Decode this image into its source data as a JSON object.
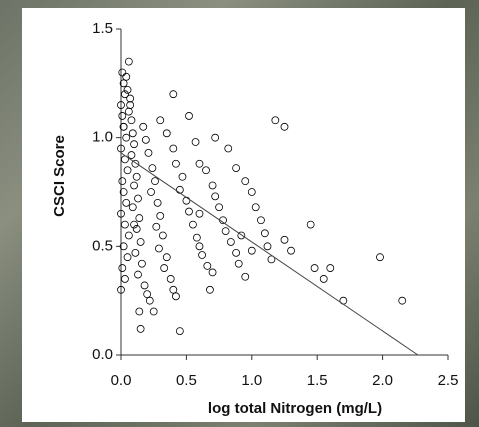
{
  "chart_data": {
    "type": "scatter",
    "x_label": "log total Nitrogen (mg/L)",
    "y_label": "CSCI Score",
    "xlim": [
      0,
      2.5
    ],
    "ylim": [
      0,
      1.5
    ],
    "xticks": [
      {
        "value": 0,
        "label": "0.0"
      },
      {
        "value": 0.5,
        "label": "0.5"
      },
      {
        "value": 1,
        "label": "1.0"
      },
      {
        "value": 1.5,
        "label": "1.5"
      },
      {
        "value": 2,
        "label": "2.0"
      },
      {
        "value": 2.5,
        "label": "2.5"
      }
    ],
    "yticks": [
      {
        "value": 0,
        "label": "0.0"
      },
      {
        "value": 0.5,
        "label": "0.5"
      },
      {
        "value": 1,
        "label": "1.0"
      },
      {
        "value": 1.5,
        "label": "1.5"
      }
    ],
    "color": "#000000",
    "points": {
      "x": [
        0.01,
        0.02,
        0.03,
        0.0,
        0.01,
        0.02,
        0.04,
        0.0,
        0.03,
        0.05,
        0.01,
        0.02,
        0.04,
        0.0,
        0.03,
        0.06,
        0.02,
        0.05,
        0.01,
        0.03,
        0.0,
        0.06,
        0.07,
        0.08,
        0.05,
        0.04,
        0.06,
        0.09,
        0.1,
        0.08,
        0.11,
        0.12,
        0.1,
        0.13,
        0.09,
        0.14,
        0.12,
        0.15,
        0.11,
        0.16,
        0.13,
        0.18,
        0.2,
        0.22,
        0.17,
        0.19,
        0.21,
        0.24,
        0.26,
        0.23,
        0.28,
        0.3,
        0.27,
        0.32,
        0.29,
        0.35,
        0.33,
        0.38,
        0.4,
        0.45,
        0.42,
        0.3,
        0.35,
        0.4,
        0.42,
        0.47,
        0.45,
        0.5,
        0.52,
        0.55,
        0.58,
        0.6,
        0.62,
        0.66,
        0.7,
        0.52,
        0.57,
        0.6,
        0.65,
        0.7,
        0.72,
        0.75,
        0.78,
        0.8,
        0.84,
        0.88,
        0.9,
        0.95,
        0.72,
        0.82,
        0.88,
        0.95,
        1.0,
        1.03,
        1.07,
        1.1,
        1.12,
        1.15,
        1.18,
        1.25,
        1.25,
        1.3,
        1.45,
        1.48,
        1.55,
        1.6,
        1.7,
        1.98,
        2.15,
        1.0,
        0.15,
        0.6,
        0.1,
        0.07,
        0.02,
        0.14,
        0.25,
        0.68,
        0.92,
        0.4
      ],
      "y": [
        1.3,
        1.25,
        1.2,
        1.15,
        1.1,
        1.05,
        1.0,
        0.95,
        0.9,
        0.85,
        0.8,
        0.75,
        0.7,
        0.65,
        0.6,
        0.55,
        0.5,
        0.45,
        0.4,
        0.35,
        0.3,
        1.12,
        1.18,
        1.08,
        1.22,
        1.28,
        1.35,
        1.02,
        0.97,
        0.92,
        0.88,
        0.82,
        0.78,
        0.72,
        0.68,
        0.63,
        0.58,
        0.52,
        0.47,
        0.42,
        0.37,
        0.32,
        0.28,
        0.25,
        1.05,
        0.99,
        0.93,
        0.86,
        0.8,
        0.75,
        0.7,
        0.64,
        0.59,
        0.55,
        0.49,
        0.45,
        0.4,
        0.35,
        0.3,
        0.11,
        0.27,
        1.08,
        1.02,
        0.95,
        0.88,
        0.82,
        0.76,
        0.71,
        0.66,
        0.6,
        0.54,
        0.5,
        0.46,
        0.41,
        0.38,
        1.1,
        0.98,
        0.88,
        0.85,
        0.78,
        0.73,
        0.68,
        0.62,
        0.57,
        0.52,
        0.47,
        0.42,
        0.36,
        1.0,
        0.95,
        0.86,
        0.8,
        0.75,
        0.68,
        0.62,
        0.56,
        0.5,
        0.44,
        1.08,
        1.05,
        0.53,
        0.48,
        0.6,
        0.4,
        0.35,
        0.4,
        0.25,
        0.45,
        0.25,
        0.48,
        0.12,
        0.65,
        0.6,
        1.15,
        1.05,
        0.2,
        0.2,
        0.3,
        0.55,
        1.2
      ]
    },
    "fit_line": {
      "x": [
        0,
        2.27
      ],
      "y": [
        0.93,
        0
      ]
    }
  }
}
